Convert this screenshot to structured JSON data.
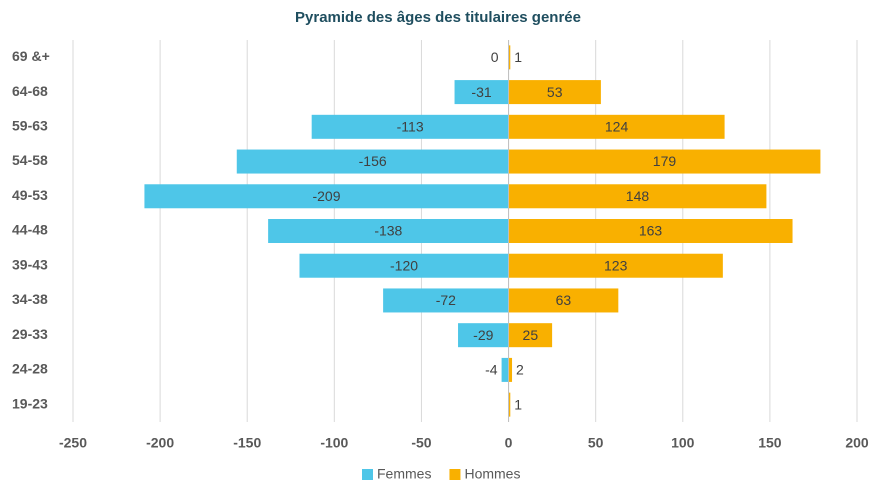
{
  "chart_data": {
    "type": "bar",
    "orientation": "horizontal",
    "title": "Pyramide des âges des titulaires genrée",
    "categories": [
      "69 &+",
      "64-68",
      "59-63",
      "54-58",
      "49-53",
      "44-48",
      "39-43",
      "34-38",
      "29-33",
      "24-28",
      "19-23"
    ],
    "series": [
      {
        "name": "Femmes",
        "color": "#4ec6e8",
        "values": [
          0,
          -31,
          -113,
          -156,
          -209,
          -138,
          -120,
          -72,
          -29,
          -4,
          null
        ]
      },
      {
        "name": "Hommes",
        "color": "#f9b000",
        "values": [
          1,
          53,
          124,
          179,
          148,
          163,
          123,
          63,
          25,
          2,
          1
        ]
      }
    ],
    "xlim": [
      -250,
      200
    ],
    "xticks": [
      -250,
      -200,
      -150,
      -100,
      -50,
      0,
      50,
      100,
      150,
      200
    ],
    "grid": true,
    "legend": "bottom"
  }
}
